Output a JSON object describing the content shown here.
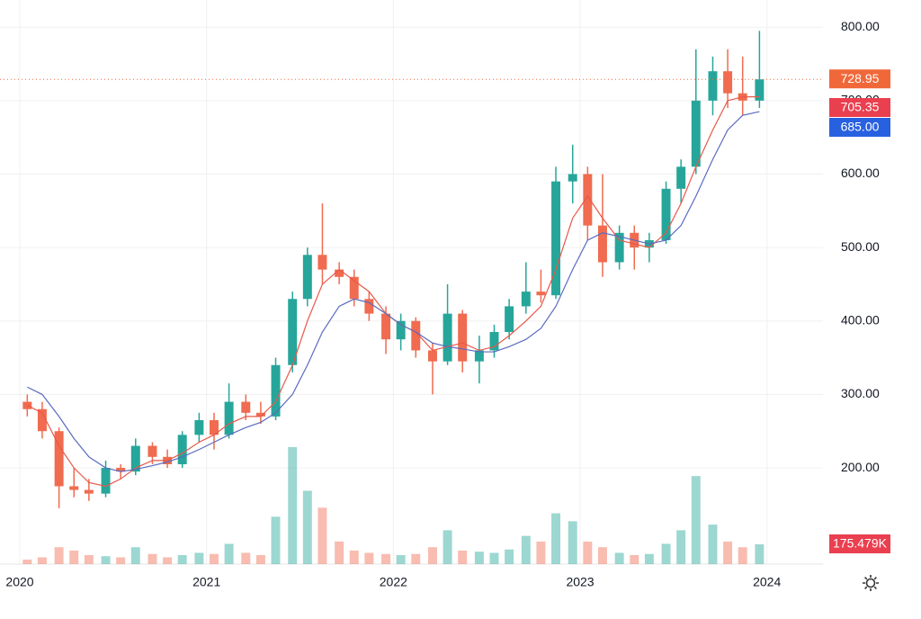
{
  "chart_data": {
    "type": "candlestick",
    "x": [
      2020.04,
      2020.12,
      2020.21,
      2020.29,
      2020.37,
      2020.46,
      2020.54,
      2020.62,
      2020.71,
      2020.79,
      2020.87,
      2020.96,
      2021.04,
      2021.12,
      2021.21,
      2021.29,
      2021.37,
      2021.46,
      2021.54,
      2021.62,
      2021.71,
      2021.79,
      2021.87,
      2021.96,
      2022.04,
      2022.12,
      2022.21,
      2022.29,
      2022.37,
      2022.46,
      2022.54,
      2022.62,
      2022.71,
      2022.79,
      2022.87,
      2022.96,
      2023.04,
      2023.12,
      2023.21,
      2023.29,
      2023.37,
      2023.46,
      2023.54,
      2023.62,
      2023.71,
      2023.79,
      2023.87,
      2023.96
    ],
    "open": [
      290,
      280,
      250,
      175,
      170,
      165,
      200,
      195,
      230,
      215,
      205,
      245,
      265,
      245,
      290,
      275,
      270,
      340,
      430,
      490,
      470,
      460,
      430,
      410,
      375,
      400,
      360,
      345,
      410,
      345,
      360,
      385,
      420,
      440,
      435,
      590,
      600,
      530,
      480,
      520,
      500,
      510,
      580,
      610,
      700,
      740,
      710,
      700
    ],
    "high": [
      300,
      290,
      255,
      200,
      185,
      210,
      205,
      240,
      235,
      225,
      250,
      275,
      275,
      315,
      300,
      290,
      350,
      440,
      500,
      560,
      480,
      470,
      440,
      420,
      410,
      405,
      370,
      450,
      415,
      380,
      395,
      430,
      480,
      470,
      610,
      640,
      610,
      600,
      530,
      530,
      520,
      590,
      620,
      770,
      760,
      770,
      760,
      795
    ],
    "low": [
      270,
      240,
      145,
      160,
      155,
      160,
      185,
      190,
      205,
      200,
      200,
      235,
      225,
      240,
      265,
      260,
      265,
      330,
      420,
      450,
      450,
      420,
      400,
      355,
      360,
      350,
      300,
      340,
      330,
      315,
      350,
      375,
      410,
      425,
      430,
      560,
      510,
      460,
      470,
      470,
      480,
      505,
      560,
      600,
      680,
      690,
      680,
      690
    ],
    "close": [
      280,
      250,
      175,
      170,
      165,
      200,
      195,
      230,
      215,
      205,
      245,
      265,
      245,
      290,
      275,
      270,
      340,
      430,
      490,
      470,
      460,
      430,
      410,
      375,
      400,
      360,
      345,
      410,
      345,
      360,
      385,
      420,
      440,
      435,
      590,
      600,
      530,
      480,
      520,
      500,
      510,
      580,
      610,
      700,
      740,
      710,
      700,
      728.95
    ],
    "volume": [
      40,
      60,
      150,
      120,
      80,
      70,
      60,
      150,
      90,
      60,
      80,
      100,
      90,
      180,
      100,
      80,
      420,
      1037,
      650,
      500,
      200,
      120,
      100,
      90,
      80,
      90,
      150,
      300,
      120,
      110,
      100,
      130,
      250,
      200,
      450,
      380,
      200,
      150,
      100,
      80,
      90,
      180,
      300,
      780,
      350,
      200,
      150,
      175.479
    ],
    "volume_value_labels": {
      "47": "175.479K"
    },
    "volume_lim": [
      0,
      1100
    ],
    "series": [
      {
        "color": "#e8584a",
        "values": [
          285,
          275,
          230,
          200,
          180,
          175,
          185,
          200,
          210,
          210,
          220,
          235,
          245,
          260,
          270,
          270,
          290,
          340,
          400,
          450,
          470,
          455,
          440,
          410,
          395,
          385,
          360,
          365,
          370,
          360,
          365,
          380,
          400,
          420,
          470,
          540,
          570,
          540,
          510,
          505,
          500,
          520,
          560,
          610,
          660,
          700,
          705,
          705.35
        ]
      },
      {
        "color": "#5b6bbf",
        "values": [
          310,
          300,
          270,
          240,
          215,
          200,
          195,
          198,
          203,
          208,
          215,
          225,
          235,
          245,
          255,
          262,
          275,
          300,
          340,
          385,
          420,
          430,
          425,
          410,
          395,
          385,
          370,
          365,
          362,
          358,
          358,
          365,
          375,
          390,
          420,
          470,
          510,
          520,
          515,
          510,
          505,
          510,
          530,
          570,
          620,
          660,
          680,
          685
        ]
      }
    ],
    "up_color": "#26a69a",
    "down_color": "#f06b4f",
    "price_labels": [
      {
        "value": 728.95,
        "label": "728.95",
        "color": "#f0683a"
      },
      {
        "value": 705.35,
        "label": "705.35",
        "color": "#ea3f4f"
      },
      {
        "value": 685,
        "label": "685.00",
        "color": "#2861e0"
      }
    ],
    "xlim": [
      2019.894,
      2024.3
    ],
    "xticks": [
      2020,
      2021,
      2022,
      2023,
      2024
    ],
    "ylim": [
      69,
      837
    ],
    "yticks": [
      {
        "value": 200,
        "label": "200.00"
      },
      {
        "value": 300,
        "label": "300.00"
      },
      {
        "value": 400,
        "label": "400.00"
      },
      {
        "value": 500,
        "label": "500.00"
      },
      {
        "value": 600,
        "label": "600.00"
      },
      {
        "value": 700,
        "label": "700.00"
      },
      {
        "value": 800,
        "label": "800.00"
      }
    ],
    "grid": true
  }
}
